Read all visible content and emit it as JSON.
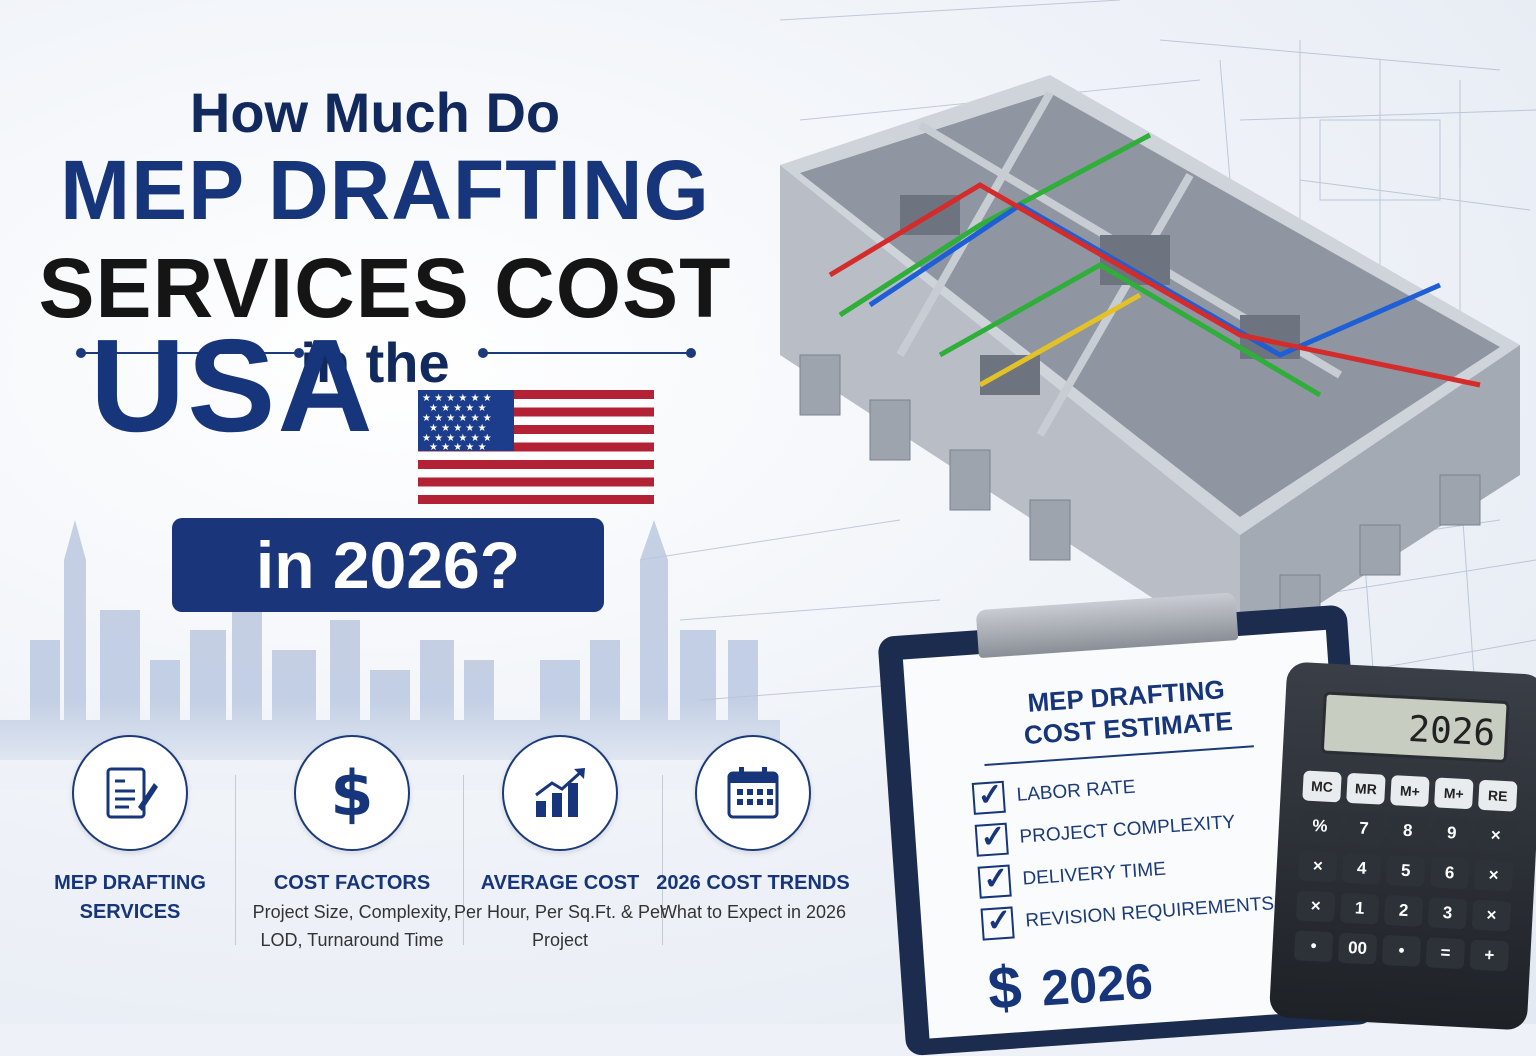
{
  "headline": {
    "line1": "How Much Do",
    "line2": "MEP DRAFTING",
    "line3": "SERVICES COST",
    "line4": "in the",
    "country": "USA",
    "year_box": "in 2026?"
  },
  "features": [
    {
      "title": "MEP DRAFTING SERVICES",
      "desc": "",
      "icon": "document-pen-icon"
    },
    {
      "title": "COST FACTORS",
      "desc": "Project Size, Complexity, LOD, Turnaround Time",
      "icon": "dollar-icon"
    },
    {
      "title": "AVERAGE COST",
      "desc": "Per Hour, Per Sq.Ft. & Per Project",
      "icon": "growth-chart-icon"
    },
    {
      "title": "2026 COST TRENDS",
      "desc": "What to Expect in 2026",
      "icon": "calendar-icon"
    }
  ],
  "clipboard": {
    "title_line1": "MEP DRAFTING",
    "title_line2": "COST ESTIMATE",
    "items": [
      "LABOR RATE",
      "PROJECT COMPLEXITY",
      "DELIVERY TIME",
      "REVISION REQUIREMENTS"
    ],
    "total_symbol": "$",
    "total_value": "2026"
  },
  "calculator": {
    "display": "2026",
    "keys": [
      "MC",
      "MR",
      "M+",
      "M+",
      "RE",
      "%",
      "7",
      "8",
      "9",
      "×",
      "×",
      "4",
      "5",
      "6",
      "×",
      "×",
      "1",
      "2",
      "3",
      "×",
      "•",
      "00",
      "•",
      "=",
      "+"
    ]
  },
  "colors": {
    "navy": "#16357a",
    "dark": "#151515",
    "flag_red": "#b22234",
    "flag_blue": "#1c3d8c"
  }
}
